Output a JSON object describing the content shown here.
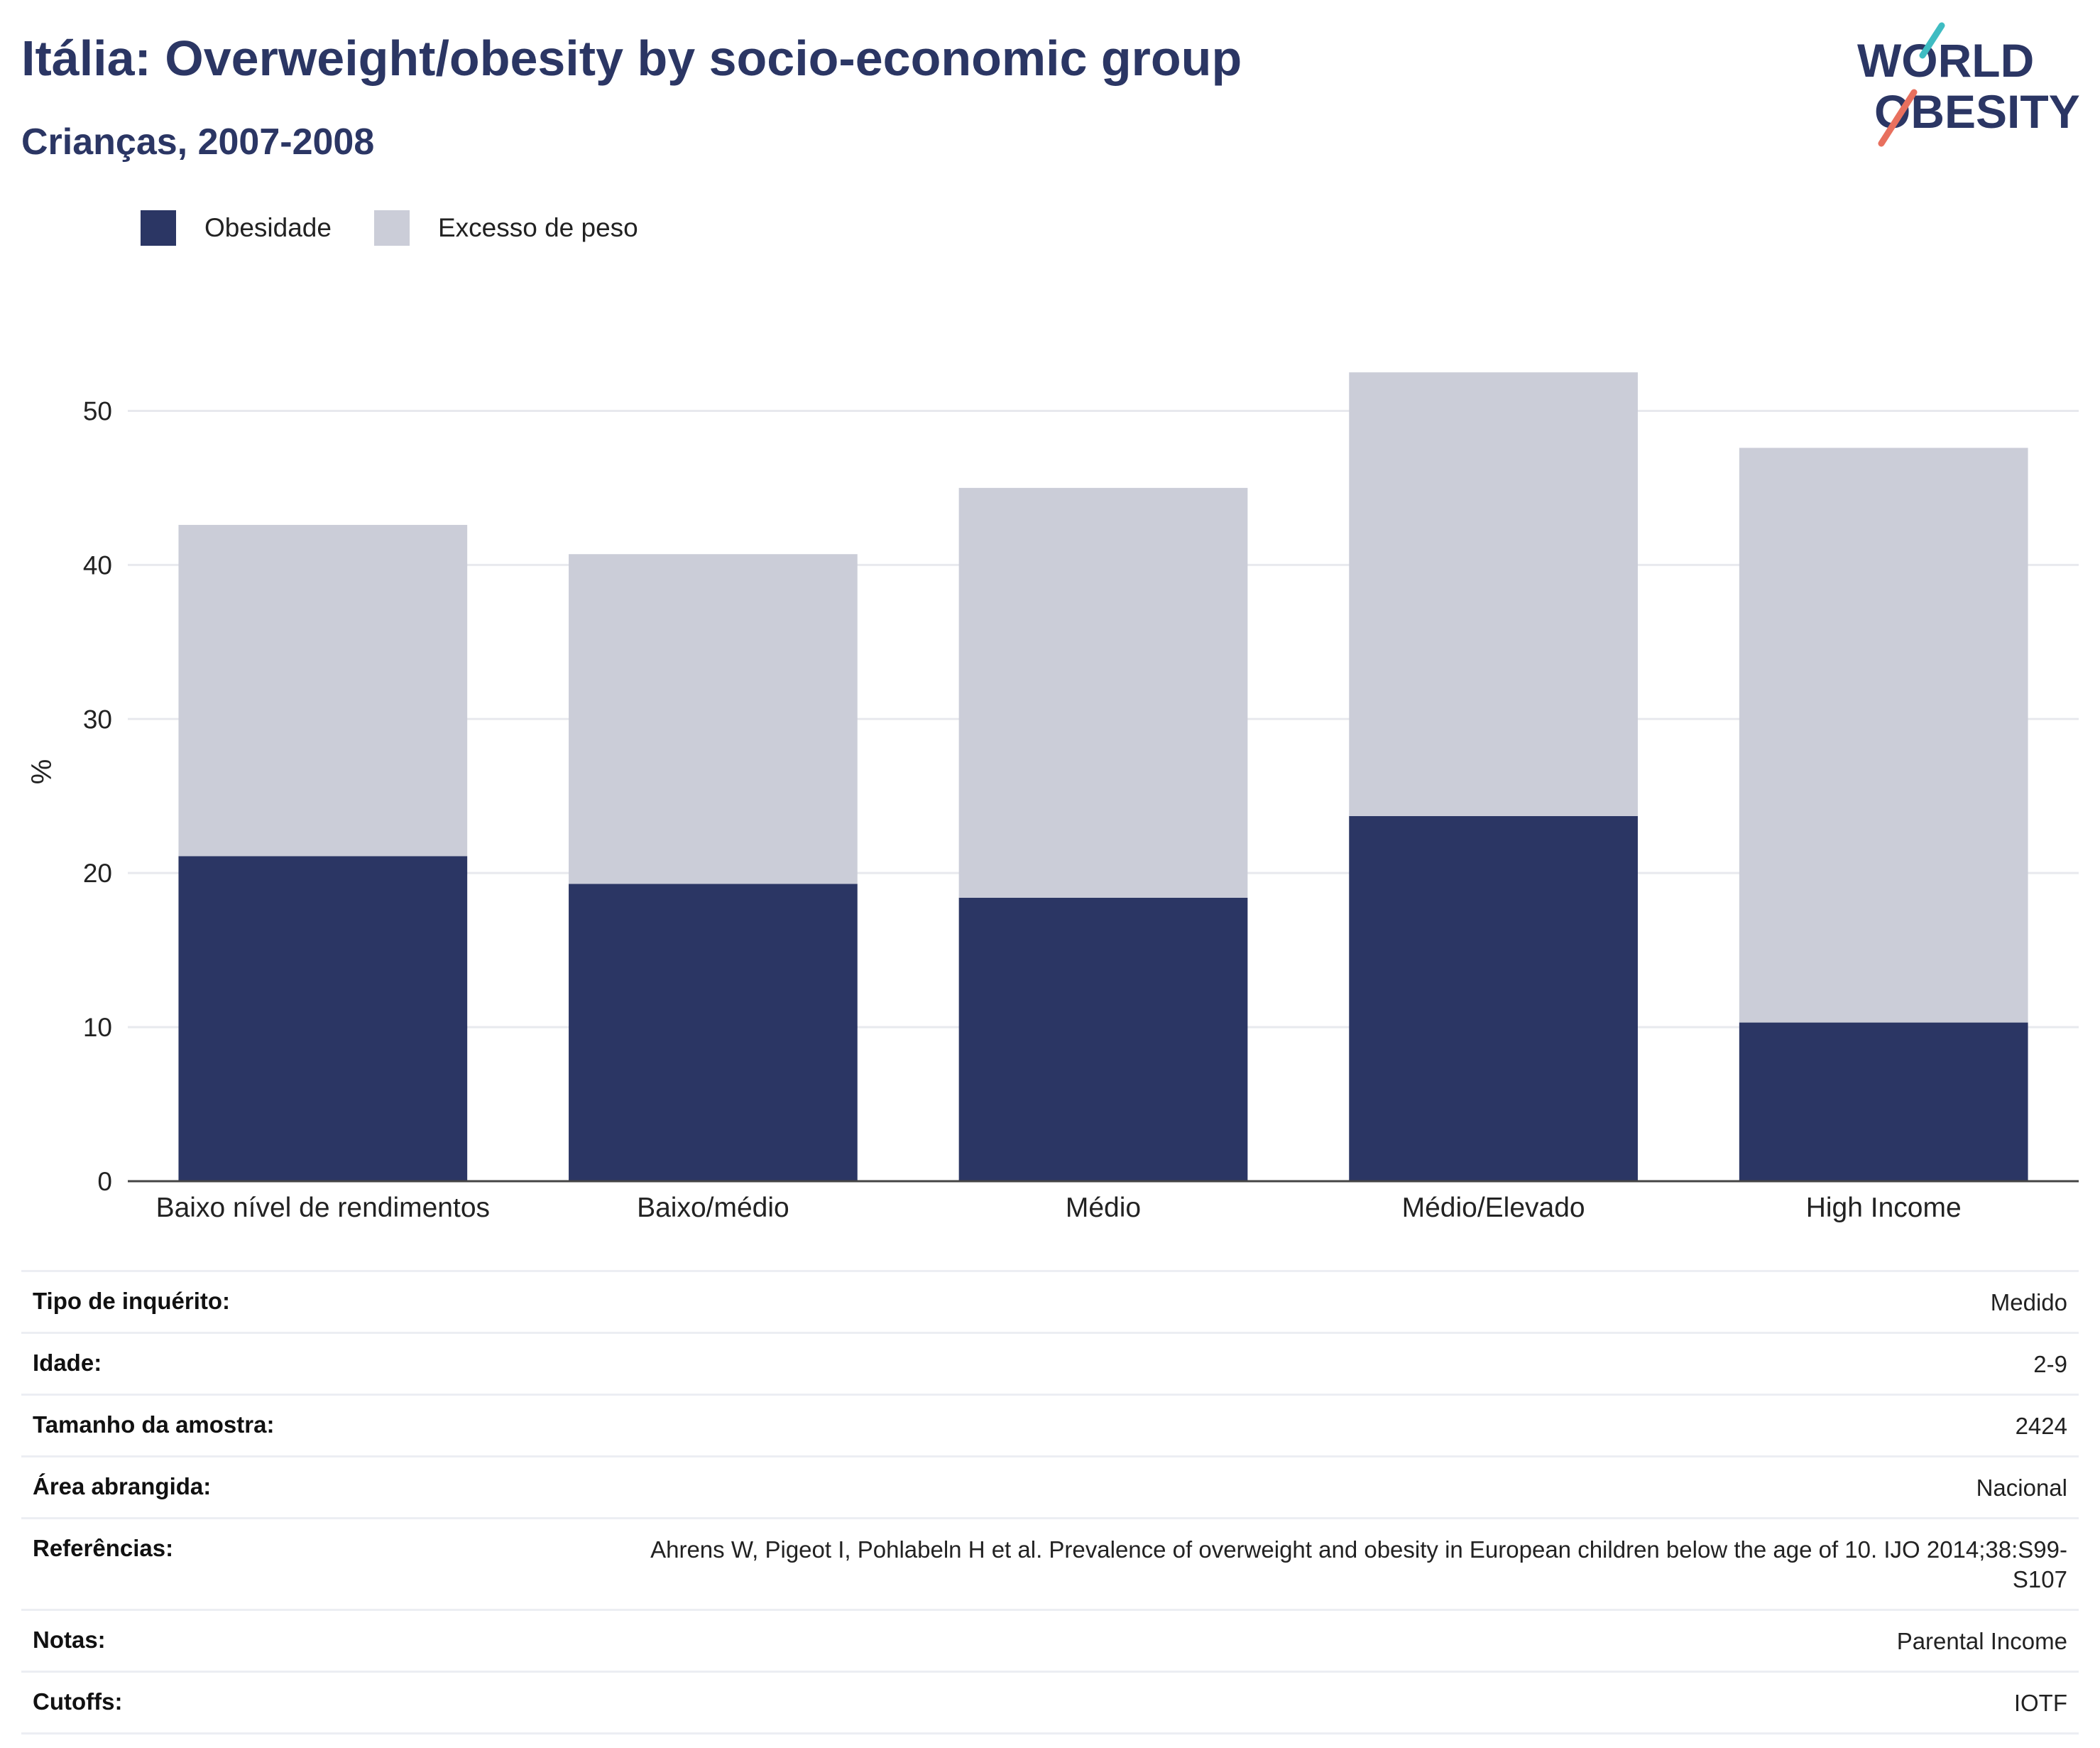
{
  "header": {
    "title": "Itália: Overweight/obesity by socio-economic group",
    "subtitle": "Crianças, 2007-2008"
  },
  "logo": {
    "line1": "WORLD",
    "line2": "OBESITY"
  },
  "legend": [
    {
      "label": "Obesidade",
      "color": "#2b3664"
    },
    {
      "label": "Excesso de peso",
      "color": "#cbcdd8"
    }
  ],
  "chart_data": {
    "type": "bar",
    "stacked": true,
    "categories": [
      "Baixo nível de rendimentos",
      "Baixo/médio",
      "Médio",
      "Médio/Elevado",
      "High Income"
    ],
    "series": [
      {
        "name": "Obesidade",
        "values": [
          21.1,
          19.3,
          18.4,
          23.7,
          10.3
        ],
        "color": "#2b3664"
      },
      {
        "name": "Excesso de peso",
        "values": [
          21.5,
          21.4,
          26.6,
          28.8,
          37.3
        ],
        "color": "#cbcdd8"
      }
    ],
    "ylabel": "%",
    "ylim": [
      0,
      55
    ],
    "yticks": [
      0,
      10,
      20,
      30,
      40,
      50
    ],
    "grid": true,
    "legend_position": "top-left"
  },
  "info": [
    {
      "key": "Tipo de inquérito:",
      "value": "Medido"
    },
    {
      "key": "Idade:",
      "value": "2-9"
    },
    {
      "key": "Tamanho da amostra:",
      "value": "2424"
    },
    {
      "key": "Área abrangida:",
      "value": "Nacional"
    },
    {
      "key": "Referências:",
      "value": "Ahrens W, Pigeot I, Pohlabeln H et al. Prevalence of overweight and obesity in European children below the age of 10. IJO 2014;38:S99-S107"
    },
    {
      "key": "Notas:",
      "value": "Parental Income"
    },
    {
      "key": "Cutoffs:",
      "value": "IOTF"
    }
  ]
}
